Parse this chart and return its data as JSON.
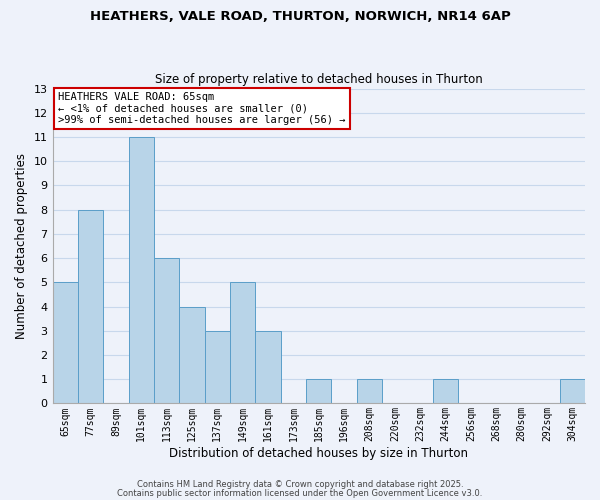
{
  "title_line1": "HEATHERS, VALE ROAD, THURTON, NORWICH, NR14 6AP",
  "title_line2": "Size of property relative to detached houses in Thurton",
  "xlabel": "Distribution of detached houses by size in Thurton",
  "ylabel": "Number of detached properties",
  "bins": [
    "65sqm",
    "77sqm",
    "89sqm",
    "101sqm",
    "113sqm",
    "125sqm",
    "137sqm",
    "149sqm",
    "161sqm",
    "173sqm",
    "185sqm",
    "196sqm",
    "208sqm",
    "220sqm",
    "232sqm",
    "244sqm",
    "256sqm",
    "268sqm",
    "280sqm",
    "292sqm",
    "304sqm"
  ],
  "values": [
    5,
    8,
    0,
    11,
    6,
    4,
    3,
    5,
    3,
    0,
    1,
    0,
    1,
    0,
    0,
    1,
    0,
    0,
    0,
    0,
    1
  ],
  "highlight_bin_index": 0,
  "bar_color": "#b8d4e8",
  "bar_edge_color": "#5a9ec9",
  "ylim": [
    0,
    13
  ],
  "yticks": [
    0,
    1,
    2,
    3,
    4,
    5,
    6,
    7,
    8,
    9,
    10,
    11,
    12,
    13
  ],
  "annotation_title": "HEATHERS VALE ROAD: 65sqm",
  "annotation_line2": "← <1% of detached houses are smaller (0)",
  "annotation_line3": ">99% of semi-detached houses are larger (56) →",
  "footer_line1": "Contains HM Land Registry data © Crown copyright and database right 2025.",
  "footer_line2": "Contains public sector information licensed under the Open Government Licence v3.0.",
  "grid_color": "#c8d8ec",
  "bg_color": "#eef2fa"
}
